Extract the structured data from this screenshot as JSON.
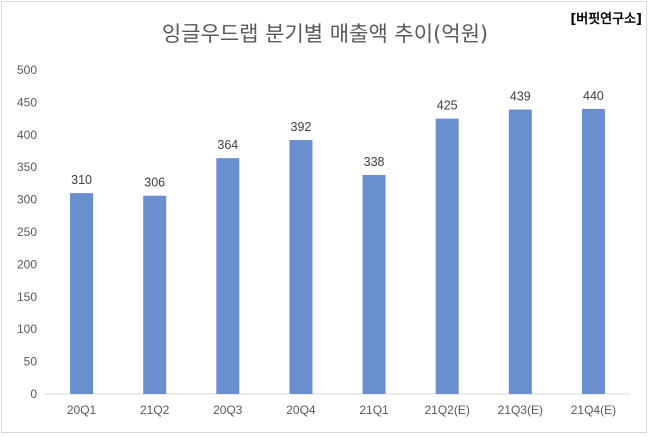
{
  "source_tag": "[버핏연구소]",
  "chart_data": {
    "type": "bar",
    "title": "잉글우드랩 분기별 매출액 추이(억원)",
    "xlabel": "",
    "ylabel": "",
    "ylim": [
      0,
      500
    ],
    "yticks": [
      0,
      50,
      100,
      150,
      200,
      250,
      300,
      350,
      400,
      450,
      500
    ],
    "grid": false,
    "legend": "none",
    "bar_color": "#6a8fcf",
    "categories": [
      "20Q1",
      "21Q2",
      "20Q3",
      "20Q4",
      "21Q1",
      "21Q2(E)",
      "21Q3(E)",
      "21Q4(E)"
    ],
    "values": [
      310,
      306,
      364,
      392,
      338,
      425,
      439,
      440
    ]
  }
}
